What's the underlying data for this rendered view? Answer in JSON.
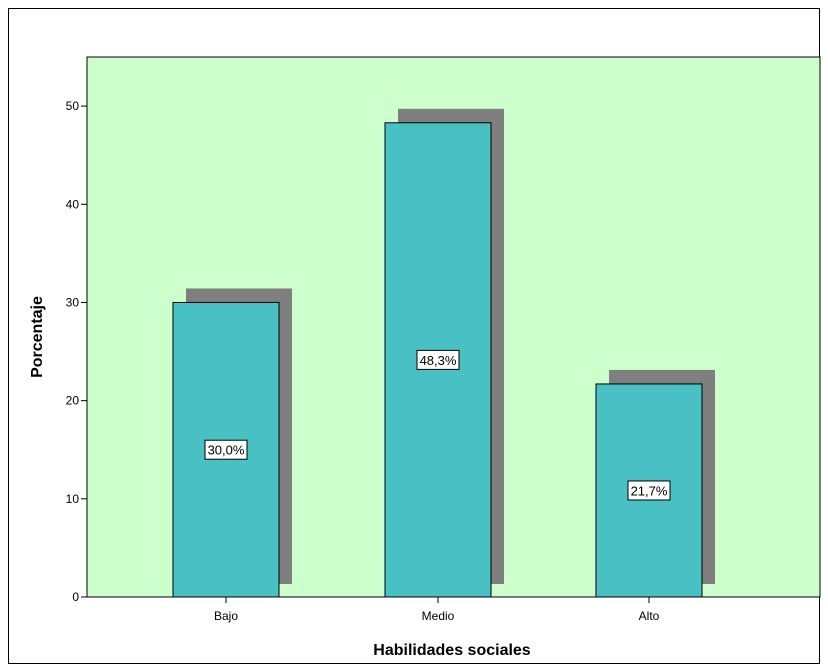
{
  "chart_data": {
    "type": "bar",
    "title": "",
    "xlabel": "Habilidades sociales",
    "ylabel": "Porcentaje",
    "categories": [
      "Bajo",
      "Medio",
      "Alto"
    ],
    "values": [
      30.0,
      48.3,
      21.7
    ],
    "data_labels": [
      "30,0%",
      "48,3%",
      "21,7%"
    ],
    "yticks": [
      0,
      10,
      20,
      30,
      40,
      50
    ],
    "ylim": [
      0,
      55
    ],
    "grid": false,
    "legend": "none",
    "colors": {
      "plot_background": "#ccffcc",
      "bar_fill": "#48c0c4",
      "bar_shadow": "#7f7f7f",
      "axis": "#000000"
    }
  }
}
